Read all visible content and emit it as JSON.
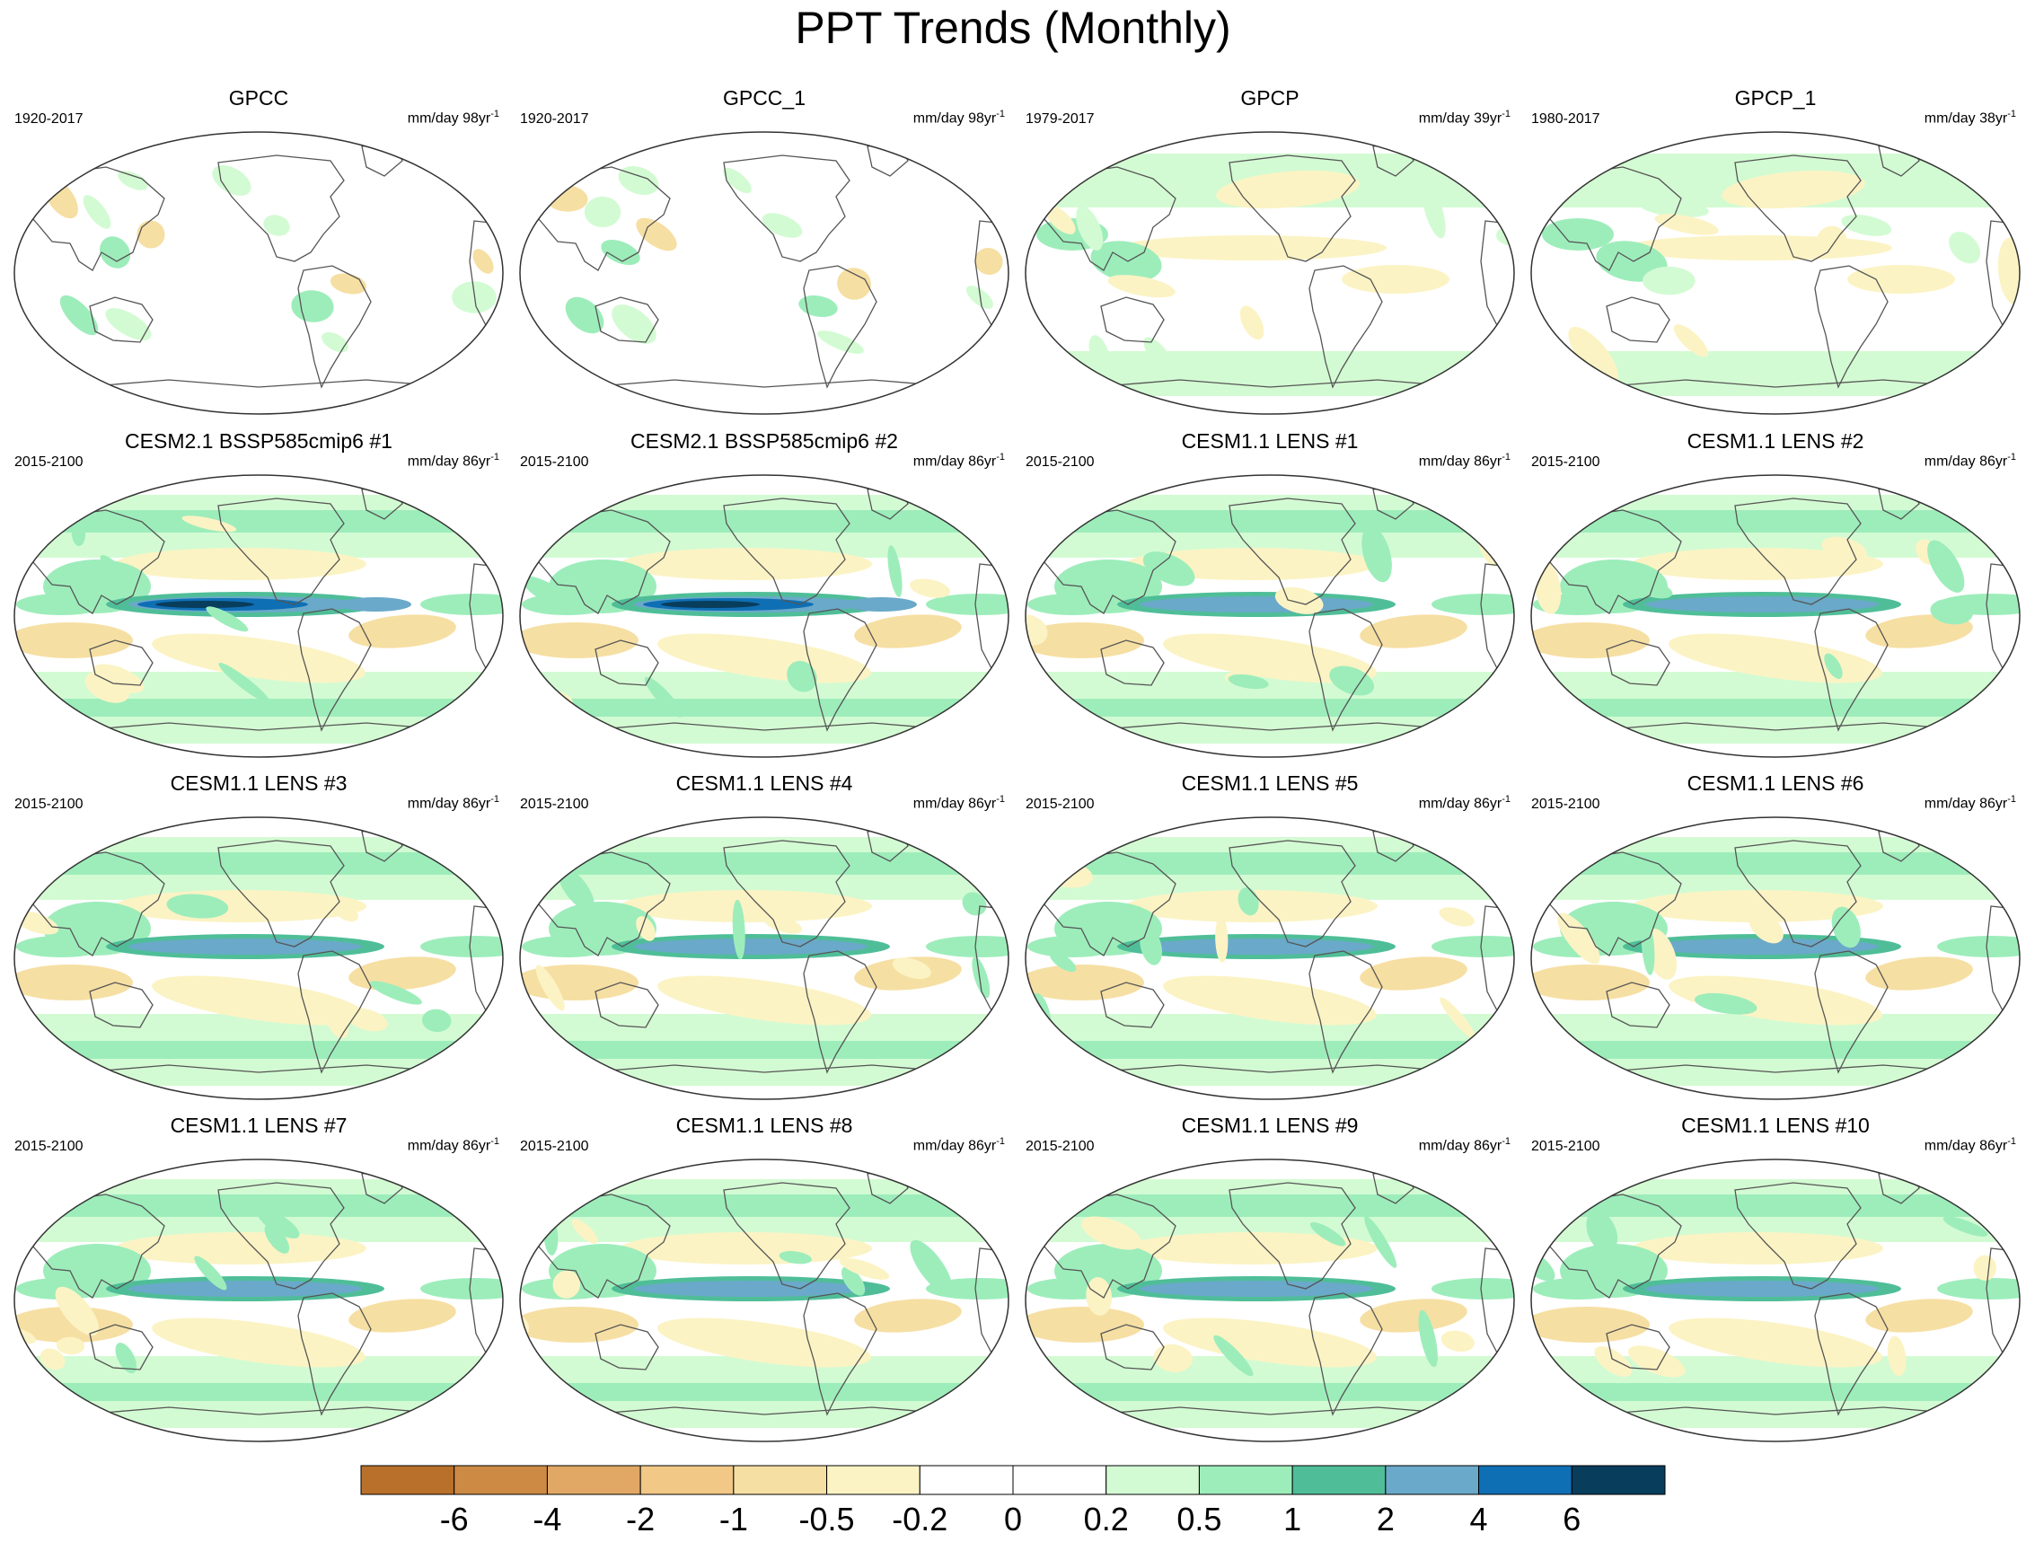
{
  "chart_data": {
    "type": "heatmap",
    "title": "PPT Trends (Monthly)",
    "projection": "robinson",
    "variable": "PPT",
    "colorbar": {
      "placement": "bottom",
      "tick_labels": [
        "-6",
        "-4",
        "-2",
        "-1",
        "-0.5",
        "-0.2",
        "0",
        "0.2",
        "0.5",
        "1",
        "2",
        "4",
        "6"
      ],
      "levels": [
        -6,
        -4,
        -2,
        -1,
        -0.5,
        -0.2,
        0,
        0.2,
        0.5,
        1,
        2,
        4,
        6
      ],
      "colors": [
        "#b8702b",
        "#cd8a44",
        "#e0a864",
        "#f2c887",
        "#f6dfa3",
        "#fcf3c4",
        "#ffffff",
        "#ffffff",
        "#d3fbd3",
        "#9dedbb",
        "#4fbe98",
        "#6aa9c9",
        "#0f6fb4",
        "#083d5c"
      ]
    },
    "panels": [
      {
        "title": "GPCC",
        "period": "1920-2017",
        "units": "mm/day",
        "span": "98",
        "exp": "-1",
        "style": "obs_land"
      },
      {
        "title": "GPCC_1",
        "period": "1920-2017",
        "units": "mm/day",
        "span": "98",
        "exp": "-1",
        "style": "obs_land"
      },
      {
        "title": "GPCP",
        "period": "1979-2017",
        "units": "mm/day",
        "span": "39",
        "exp": "-1",
        "style": "obs_global"
      },
      {
        "title": "GPCP_1",
        "period": "1980-2017",
        "units": "mm/day",
        "span": "38",
        "exp": "-1",
        "style": "obs_global"
      },
      {
        "title": "CESM2.1 BSSP585cmip6 #1",
        "period": "2015-2100",
        "units": "mm/day",
        "span": "86",
        "exp": "-1",
        "style": "model_strong"
      },
      {
        "title": "CESM2.1 BSSP585cmip6 #2",
        "period": "2015-2100",
        "units": "mm/day",
        "span": "86",
        "exp": "-1",
        "style": "model_strong"
      },
      {
        "title": "CESM1.1 LENS #1",
        "period": "2015-2100",
        "units": "mm/day",
        "span": "86",
        "exp": "-1",
        "style": "model"
      },
      {
        "title": "CESM1.1 LENS #2",
        "period": "2015-2100",
        "units": "mm/day",
        "span": "86",
        "exp": "-1",
        "style": "model"
      },
      {
        "title": "CESM1.1 LENS #3",
        "period": "2015-2100",
        "units": "mm/day",
        "span": "86",
        "exp": "-1",
        "style": "model"
      },
      {
        "title": "CESM1.1 LENS #4",
        "period": "2015-2100",
        "units": "mm/day",
        "span": "86",
        "exp": "-1",
        "style": "model"
      },
      {
        "title": "CESM1.1 LENS #5",
        "period": "2015-2100",
        "units": "mm/day",
        "span": "86",
        "exp": "-1",
        "style": "model"
      },
      {
        "title": "CESM1.1 LENS #6",
        "period": "2015-2100",
        "units": "mm/day",
        "span": "86",
        "exp": "-1",
        "style": "model"
      },
      {
        "title": "CESM1.1 LENS #7",
        "period": "2015-2100",
        "units": "mm/day",
        "span": "86",
        "exp": "-1",
        "style": "model"
      },
      {
        "title": "CESM1.1 LENS #8",
        "period": "2015-2100",
        "units": "mm/day",
        "span": "86",
        "exp": "-1",
        "style": "model"
      },
      {
        "title": "CESM1.1 LENS #9",
        "period": "2015-2100",
        "units": "mm/day",
        "span": "86",
        "exp": "-1",
        "style": "model"
      },
      {
        "title": "CESM1.1 LENS #10",
        "period": "2015-2100",
        "units": "mm/day",
        "span": "86",
        "exp": "-1",
        "style": "model"
      }
    ]
  }
}
